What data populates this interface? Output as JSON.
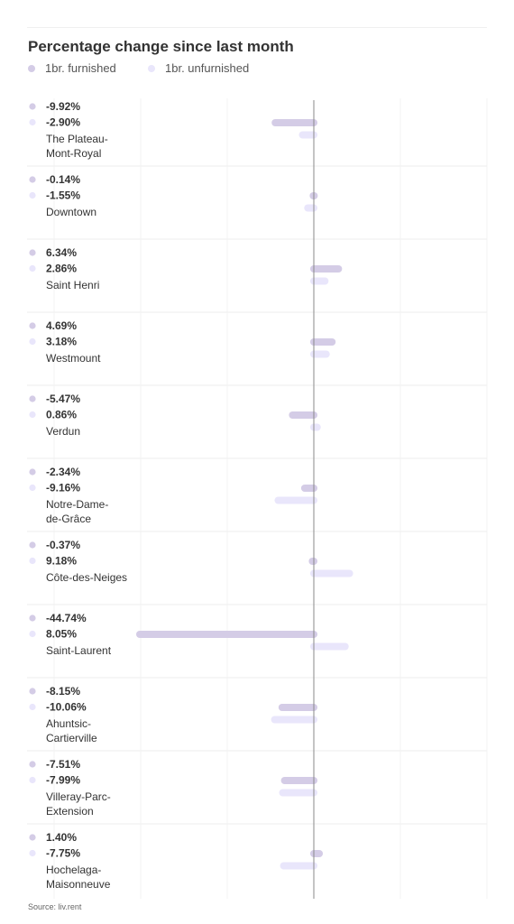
{
  "header": {
    "title": "Percentage change since last month"
  },
  "legend": {
    "items": [
      {
        "label": "1br. furnished",
        "color": "#d4cce6"
      },
      {
        "label": "1br. unfurnished",
        "color": "#e9e6fb"
      }
    ]
  },
  "footer": {
    "source": "Source: liv.rent"
  },
  "chart_data": {
    "type": "bar",
    "orientation": "horizontal",
    "title": "Percentage change since last month",
    "categories": [
      [
        "The Plateau-",
        "Mont-Royal"
      ],
      [
        "Downtown"
      ],
      [
        "Saint Henri"
      ],
      [
        "Westmount"
      ],
      [
        "Verdun"
      ],
      [
        "Notre-Dame-",
        "de-Grâce"
      ],
      [
        "Côte-des-Neiges"
      ],
      [
        "Saint-Laurent"
      ],
      [
        "Ahuntsic-",
        "Cartierville"
      ],
      [
        "Villeray-Parc-",
        "Extension"
      ],
      [
        "Hochelaga-",
        "Maisonneuve"
      ]
    ],
    "series": [
      {
        "name": "1br. furnished",
        "color": "#d4cce6",
        "values": [
          -9.92,
          -0.14,
          6.34,
          4.69,
          -5.47,
          -2.34,
          -0.37,
          -44.74,
          -8.15,
          -7.51,
          1.4
        ],
        "labels": [
          "-9.92%",
          "-0.14%",
          "6.34%",
          "4.69%",
          "-5.47%",
          "-2.34%",
          "-0.37%",
          "-44.74%",
          "-8.15%",
          "-7.51%",
          "1.40%"
        ]
      },
      {
        "name": "1br. unfurnished",
        "color": "#e9e6fb",
        "values": [
          -2.9,
          -1.55,
          2.86,
          3.18,
          0.86,
          -9.16,
          9.18,
          8.05,
          -10.06,
          -7.99,
          -7.75
        ],
        "labels": [
          "-2.90%",
          "-1.55%",
          "2.86%",
          "3.18%",
          "0.86%",
          "-9.16%",
          "9.18%",
          "8.05%",
          "-10.06%",
          "-7.99%",
          "-7.75%"
        ]
      }
    ],
    "xlim": [
      -45,
      45
    ],
    "grid": true,
    "zero_line": true,
    "legend_position": "top-left"
  }
}
